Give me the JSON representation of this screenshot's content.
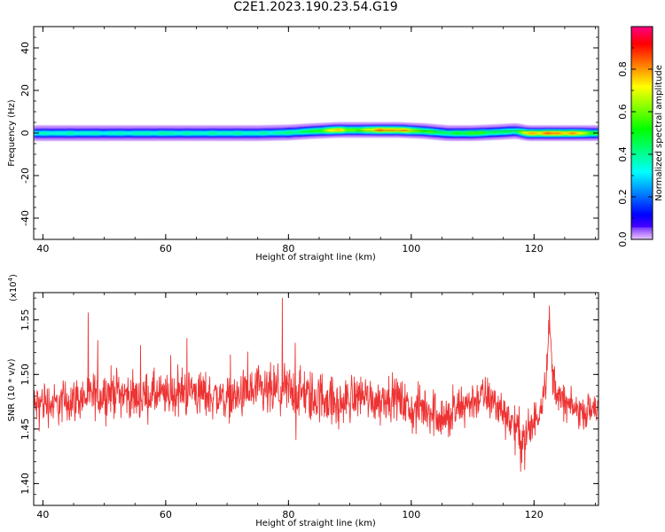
{
  "title": "C2E1.2023.190.23.54.G19",
  "chart_data": [
    {
      "type": "heatmap",
      "xlabel": "Height of straight line (km)",
      "ylabel": "Frequency (Hz)",
      "xlim": [
        38.5,
        130.5
      ],
      "ylim": [
        -50,
        50
      ],
      "x_ticks": [
        40,
        60,
        80,
        100,
        120
      ],
      "y_ticks": [
        -40,
        -20,
        0,
        20,
        40
      ],
      "x_tick_labels": [
        "40",
        "60",
        "80",
        "100",
        "120"
      ],
      "y_tick_labels": [
        "-40",
        "-20",
        "0",
        "20",
        "40"
      ],
      "grid": false,
      "colorbar": {
        "label": "Normalized spectral amplitude",
        "range": [
          0,
          1
        ],
        "ticks": [
          0.0,
          0.2,
          0.4,
          0.6,
          0.8
        ],
        "tick_labels": [
          "0.0",
          "0.2",
          "0.4",
          "0.6",
          "0.8"
        ]
      },
      "band": [
        {
          "x": 39,
          "center": 0.0,
          "peak": 0.4
        },
        {
          "x": 45,
          "center": 0.0,
          "peak": 0.42
        },
        {
          "x": 50,
          "center": 0.0,
          "peak": 0.4
        },
        {
          "x": 55,
          "center": 0.0,
          "peak": 0.42
        },
        {
          "x": 60,
          "center": 0.0,
          "peak": 0.44
        },
        {
          "x": 65,
          "center": 0.0,
          "peak": 0.42
        },
        {
          "x": 70,
          "center": 0.0,
          "peak": 0.44
        },
        {
          "x": 75,
          "center": 0.0,
          "peak": 0.42
        },
        {
          "x": 80,
          "center": 0.3,
          "peak": 0.46
        },
        {
          "x": 84,
          "center": 1.0,
          "peak": 0.55
        },
        {
          "x": 88,
          "center": 1.5,
          "peak": 0.85
        },
        {
          "x": 91,
          "center": 1.5,
          "peak": 0.6
        },
        {
          "x": 94,
          "center": 1.5,
          "peak": 0.88
        },
        {
          "x": 98,
          "center": 1.5,
          "peak": 0.9
        },
        {
          "x": 102,
          "center": 1.0,
          "peak": 0.62
        },
        {
          "x": 106,
          "center": 0.0,
          "peak": 0.5
        },
        {
          "x": 110,
          "center": 0.0,
          "peak": 0.62
        },
        {
          "x": 114,
          "center": 0.5,
          "peak": 0.5
        },
        {
          "x": 117,
          "center": 1.0,
          "peak": 0.52
        },
        {
          "x": 119,
          "center": 0.0,
          "peak": 0.85
        },
        {
          "x": 123,
          "center": 0.0,
          "peak": 0.92
        },
        {
          "x": 127,
          "center": 0.0,
          "peak": 0.85
        },
        {
          "x": 130.5,
          "center": 0.0,
          "peak": 0.55
        }
      ]
    },
    {
      "type": "line",
      "xlabel": "Height of straight line (km)",
      "ylabel": "SNR (10 * v/v)",
      "y_scale_label": "(x10",
      "y_scale_exponent": "4",
      "y_scale_suffix": ")",
      "xlim": [
        38.5,
        130.5
      ],
      "ylim": [
        1.38,
        1.575
      ],
      "x_ticks": [
        40,
        60,
        80,
        100,
        120
      ],
      "y_ticks": [
        1.4,
        1.45,
        1.5,
        1.55
      ],
      "x_tick_labels": [
        "40",
        "60",
        "80",
        "100",
        "120"
      ],
      "y_tick_labels": [
        "1.40",
        "1.45",
        "1.50",
        "1.55"
      ],
      "grid": false,
      "color": "#ee3333",
      "series": [
        {
          "x": [
            38.5,
            40,
            42,
            44,
            46,
            48,
            50,
            52,
            54,
            56,
            58,
            60,
            62,
            64,
            66,
            68,
            70,
            72,
            74,
            76,
            78,
            80,
            82,
            84,
            86,
            88,
            90,
            92,
            94,
            96,
            98,
            100,
            102,
            104,
            106,
            108,
            110,
            112,
            114,
            116,
            117,
            118,
            119,
            120,
            121,
            122,
            122.5,
            123,
            124,
            126,
            128,
            130.5
          ],
          "values": [
            1.47,
            1.475,
            1.472,
            1.476,
            1.478,
            1.48,
            1.482,
            1.485,
            1.48,
            1.478,
            1.482,
            1.48,
            1.483,
            1.486,
            1.482,
            1.48,
            1.478,
            1.48,
            1.484,
            1.482,
            1.484,
            1.485,
            1.483,
            1.478,
            1.48,
            1.47,
            1.478,
            1.482,
            1.476,
            1.48,
            1.478,
            1.465,
            1.47,
            1.465,
            1.458,
            1.47,
            1.476,
            1.48,
            1.472,
            1.46,
            1.45,
            1.44,
            1.445,
            1.455,
            1.47,
            1.5,
            1.55,
            1.5,
            1.478,
            1.47,
            1.465,
            1.47
          ],
          "noise": [
            0.02,
            0.022,
            0.02,
            0.022,
            0.02,
            0.022,
            0.024,
            0.022,
            0.02,
            0.022,
            0.022,
            0.02,
            0.022,
            0.024,
            0.022,
            0.022,
            0.02,
            0.022,
            0.024,
            0.026,
            0.026,
            0.026,
            0.026,
            0.026,
            0.024,
            0.024,
            0.022,
            0.022,
            0.02,
            0.02,
            0.02,
            0.022,
            0.022,
            0.024,
            0.024,
            0.022,
            0.02,
            0.02,
            0.02,
            0.02,
            0.022,
            0.025,
            0.025,
            0.022,
            0.018,
            0.018,
            0.015,
            0.018,
            0.018,
            0.015,
            0.015,
            0.015
          ]
        }
      ]
    }
  ]
}
